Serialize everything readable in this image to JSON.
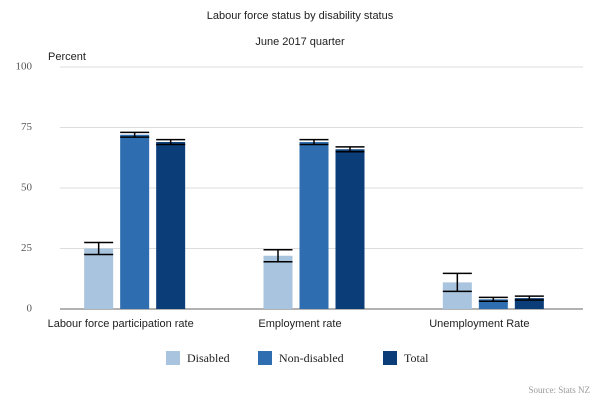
{
  "chart_data": {
    "type": "bar",
    "title": "Labour force status by disability status",
    "subtitle": "June 2017 quarter",
    "y_label": "Percent",
    "source": "Source: Stats NZ",
    "categories": [
      "Labour force participation rate",
      "Employment rate",
      "Unemployment Rate"
    ],
    "series": [
      {
        "name": "Disabled",
        "color": "#a9c4de",
        "values": [
          25,
          22,
          11
        ],
        "errors": [
          2.5,
          2.5,
          3.7
        ]
      },
      {
        "name": "Non-disabled",
        "color": "#2e6db0",
        "values": [
          72,
          69,
          4
        ],
        "errors": [
          1,
          1,
          0.8
        ]
      },
      {
        "name": "Total",
        "color": "#0b3d78",
        "values": [
          69,
          66,
          4.5
        ],
        "errors": [
          1,
          1,
          0.8
        ]
      }
    ],
    "ylim": [
      0,
      100
    ],
    "yticks": [
      0,
      25,
      50,
      75,
      100
    ],
    "grid": true
  }
}
